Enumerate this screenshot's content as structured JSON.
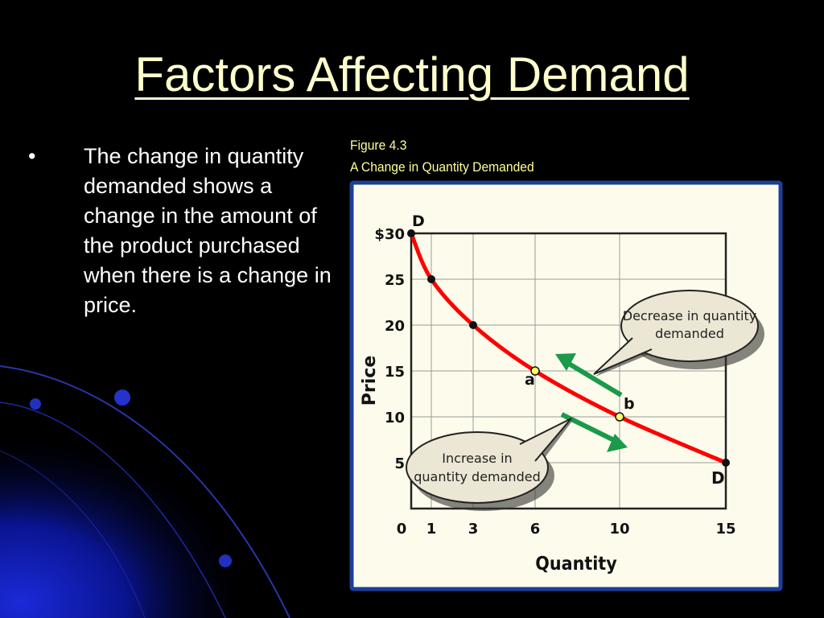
{
  "slide": {
    "title": "Factors Affecting Demand",
    "bullets": [
      {
        "marker": "•",
        "text": "The change in quantity demanded shows a change in the amount of the product purchased when there is a change in price."
      }
    ]
  },
  "figure": {
    "number": "Figure 4.3",
    "title": "A Change in Quantity Demanded"
  },
  "chart_data": {
    "type": "line",
    "xlabel": "Quantity",
    "ylabel": "Price",
    "x_ticks": [
      "0",
      "1",
      "3",
      "6",
      "10",
      "15"
    ],
    "y_ticks": [
      "$30",
      "25",
      "20",
      "15",
      "10",
      "5"
    ],
    "y_tick_values": [
      30,
      25,
      20,
      15,
      10,
      5
    ],
    "xlim": [
      0,
      15
    ],
    "ylim": [
      0,
      30
    ],
    "grid": true,
    "series": [
      {
        "points": [
          {
            "x": 0,
            "y": 30
          },
          {
            "x": 1,
            "y": 25
          },
          {
            "x": 3,
            "y": 20
          },
          {
            "x": 6,
            "y": 15
          },
          {
            "x": 10,
            "y": 10
          },
          {
            "x": 15,
            "y": 5
          }
        ],
        "color": "#ff0000"
      }
    ],
    "highlight_points": [
      {
        "x": 6,
        "y": 15,
        "label": "a",
        "color": "#ffff66"
      },
      {
        "x": 10,
        "y": 10,
        "label": "b",
        "color": "#ffff66"
      }
    ],
    "curve_labels": {
      "start": "D",
      "end": "D"
    },
    "annotations": [
      {
        "lines": [
          "Decrease in quantity",
          "demanded"
        ],
        "arrow_direction": "up-left",
        "arrow_color": "#1a9a4a"
      },
      {
        "lines": [
          "Increase in",
          "quantity demanded"
        ],
        "arrow_direction": "down-right",
        "arrow_color": "#1a9a4a"
      }
    ],
    "colors": {
      "frame": "#1c3f9a",
      "plot_bg": "#fdfcec",
      "grid": "#9a9a9a"
    }
  }
}
